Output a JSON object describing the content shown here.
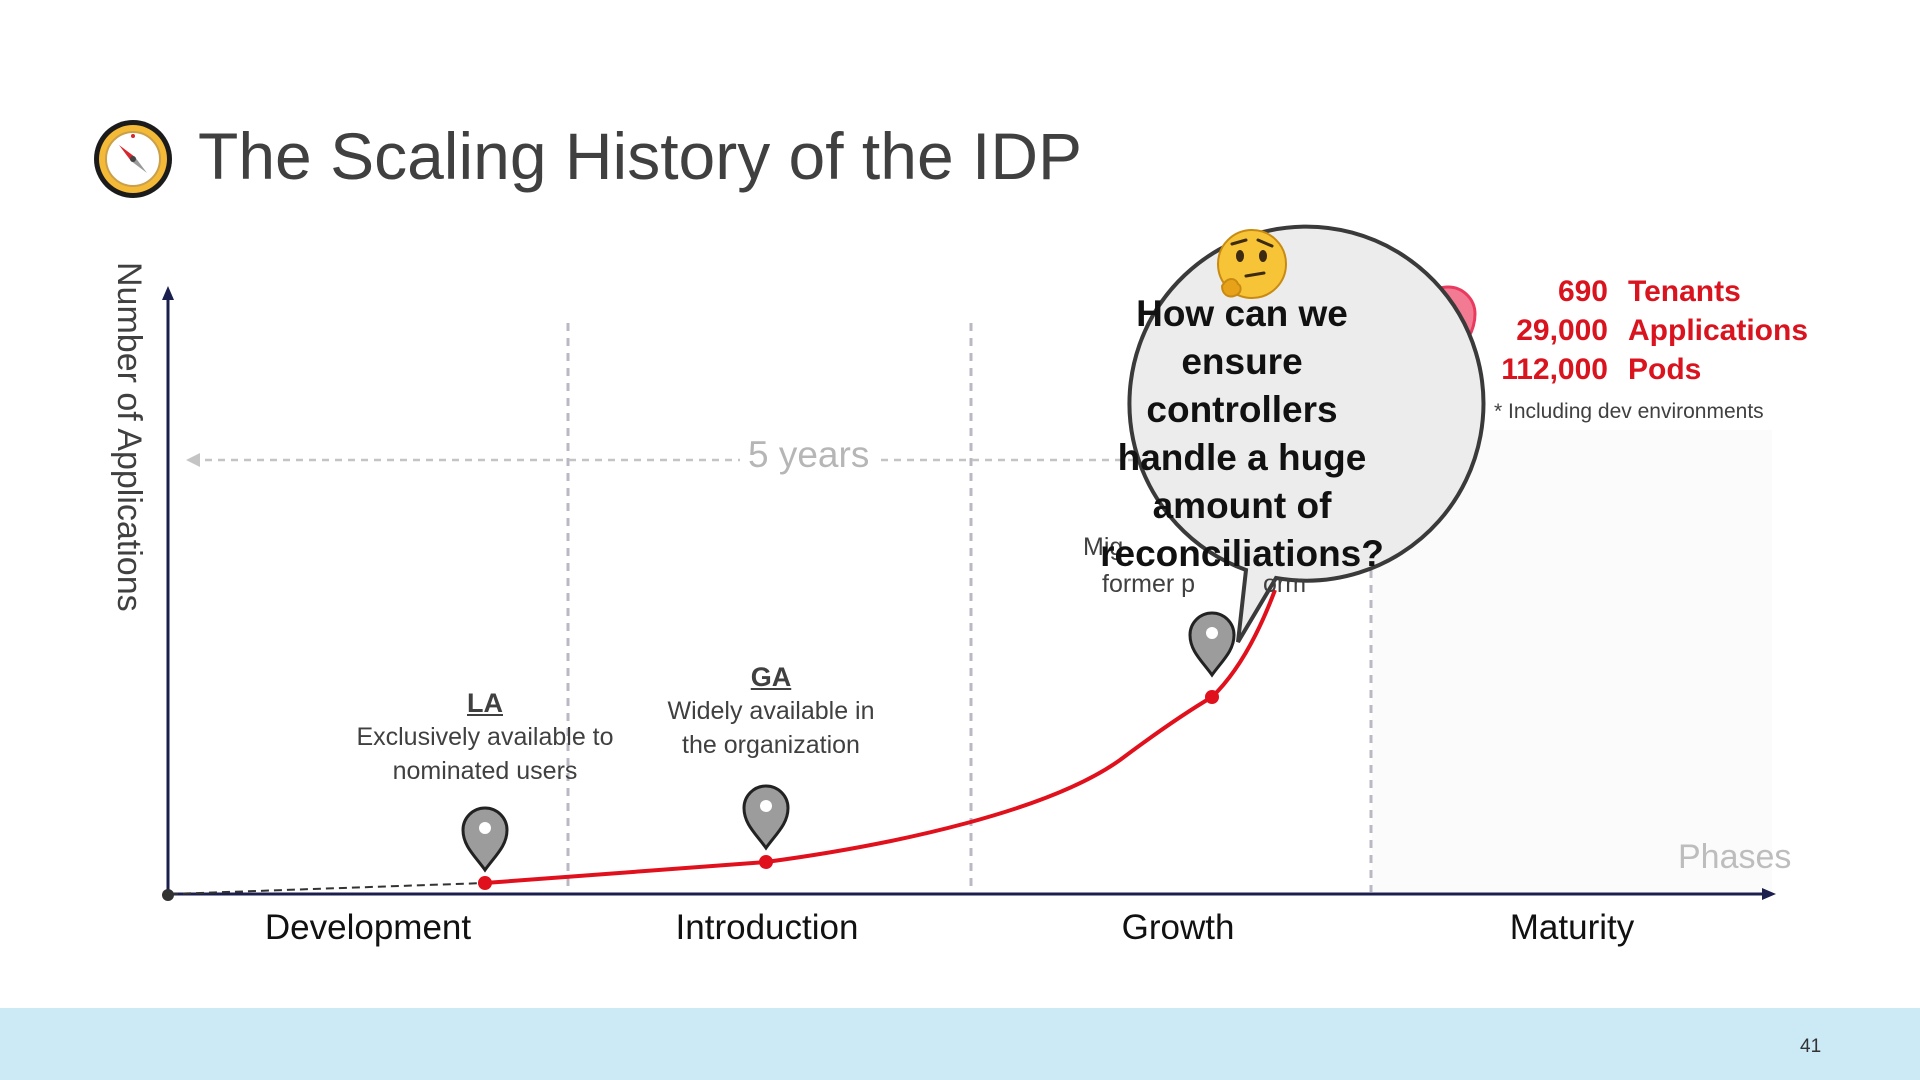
{
  "title": "The Scaling History of the IDP",
  "y_axis_label": "Number of Applications",
  "x_axis_label": "Phases",
  "duration_label": "5 years",
  "phases": [
    "Development",
    "Introduction",
    "Growth",
    "Maturity"
  ],
  "milestones": {
    "la": {
      "heading": "LA",
      "line1": "Exclusively available to",
      "line2": "nominated users"
    },
    "ga": {
      "heading": "GA",
      "line1": "Widely available in",
      "line2": "the organization"
    },
    "migration": {
      "line1": "Mig",
      "line2": "former p",
      "line3": "orm"
    }
  },
  "bubble": {
    "line1": "How can we",
    "line2": "ensure controllers",
    "line3": "handle a huge",
    "line4": "amount of",
    "line5": "reconciliations?",
    "emoji": "thinking-face-icon"
  },
  "stats": [
    {
      "value": "690",
      "label": "Tenants"
    },
    {
      "value": "29,000",
      "label": "Applications"
    },
    {
      "value": "112,000",
      "label": "Pods"
    }
  ],
  "footnote": "* Including dev environments",
  "page_number": "41",
  "colors": {
    "curve": "#e0101c",
    "axis": "#1a1f4e",
    "footer": "#cce9f6",
    "stats": "#d9141f"
  },
  "icons": [
    "compass-icon",
    "location-pin-icon",
    "thinking-face-icon"
  ]
}
